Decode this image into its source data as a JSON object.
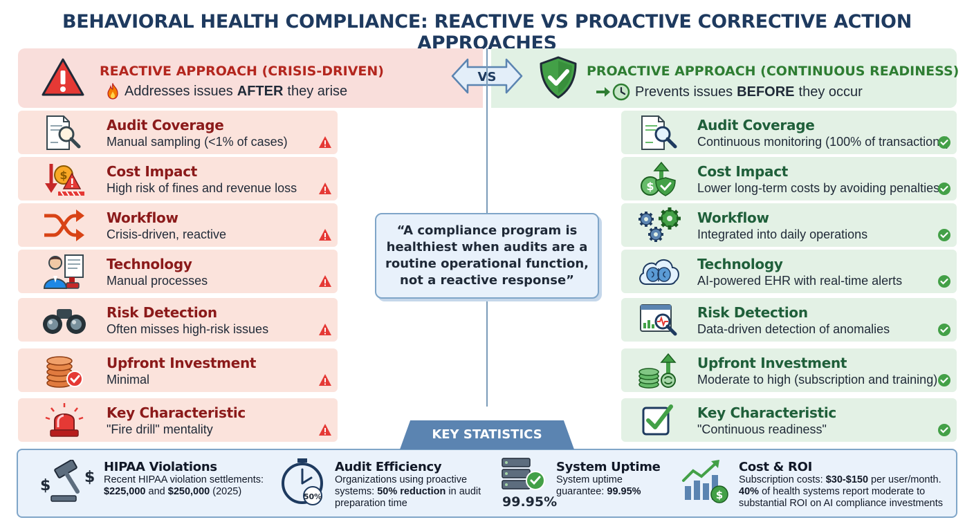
{
  "title": "BEHAVIORAL HEALTH COMPLIANCE: REACTIVE VS PROACTIVE CORRECTIVE ACTION APPROACHES",
  "vs_label": "VS",
  "reactive": {
    "title": "REACTIVE APPROACH (CRISIS-DRIVEN)",
    "subtitle_pre": "Addresses issues",
    "subtitle_bold": "AFTER",
    "subtitle_post": "they arise",
    "accent_color": "#b3261e",
    "cards": [
      {
        "label": "Audit Coverage",
        "desc": "Manual sampling (<1% of cases)",
        "icon": "document-search-icon"
      },
      {
        "label": "Cost Impact",
        "desc": "High risk of fines and revenue loss",
        "icon": "coin-warning-icon"
      },
      {
        "label": "Workflow",
        "desc": "Crisis-driven, reactive",
        "icon": "crossing-arrows-icon"
      },
      {
        "label": "Technology",
        "desc": "Manual processes",
        "icon": "person-paper-stamp-icon"
      },
      {
        "label": "Risk Detection",
        "desc": "Often misses high-risk issues",
        "icon": "binoculars-icon"
      },
      {
        "label": "Upfront Investment",
        "desc": "Minimal",
        "icon": "coin-stack-check-icon"
      },
      {
        "label": "Key Characteristic",
        "desc": "\"Fire drill\" mentality",
        "icon": "siren-icon"
      }
    ]
  },
  "proactive": {
    "title": "PROACTIVE APPROACH (CONTINUOUS READINESS)",
    "subtitle_pre": "Prevents issues",
    "subtitle_bold": "BEFORE",
    "subtitle_post": "they occur",
    "accent_color": "#2e7d32",
    "cards": [
      {
        "label": "Audit Coverage",
        "desc": "Continuous monitoring (100% of transactions)",
        "icon": "document-search-icon"
      },
      {
        "label": "Cost Impact",
        "desc": "Lower long-term costs by avoiding penalties",
        "icon": "dollar-shield-arrow-icon"
      },
      {
        "label": "Workflow",
        "desc": "Integrated into daily operations",
        "icon": "gears-icon"
      },
      {
        "label": "Technology",
        "desc": "AI-powered EHR with real-time alerts",
        "icon": "cloud-brain-icon"
      },
      {
        "label": "Risk Detection",
        "desc": "Data-driven detection of anomalies",
        "icon": "dashboard-magnifier-icon"
      },
      {
        "label": "Upfront Investment",
        "desc": "Moderate to high (subscription and training)",
        "icon": "coins-growth-icon"
      },
      {
        "label": "Key Characteristic",
        "desc": "\"Continuous readiness\"",
        "icon": "checkbox-icon"
      }
    ]
  },
  "quote": "“A compliance program is healthiest when audits are a routine operational function, not a reactive response”",
  "stats": {
    "tab_label": "KEY STATISTICS",
    "items": [
      {
        "title": "HIPAA Violations",
        "text_1": "Recent HIPAA violation settlements:",
        "bold_1": "$225,000",
        "text_2": "and",
        "bold_2": "$250,000",
        "text_3": "(2025)",
        "icon": "gavel-dollar-icon"
      },
      {
        "title": "Audit Efficiency",
        "text_1": "Organizations using proactive systems:",
        "bold_1": "50% reduction",
        "text_2": "in audit preparation time",
        "badge": "50%",
        "icon": "stopwatch-icon"
      },
      {
        "title": "System Uptime",
        "text_1": "System uptime guarantee:",
        "bold_1": "99.95%",
        "big_value": "99.95%",
        "icon": "server-check-icon"
      },
      {
        "title": "Cost & ROI",
        "text_1": "Subscription costs:",
        "bold_1": "$30-$150",
        "text_2": "per user/month.",
        "bold_2": "40%",
        "text_3": "of health systems report moderate to substantial ROI on AI compliance investments",
        "icon": "growth-chart-dollar-icon"
      }
    ]
  },
  "colors": {
    "title": "#1e3a5f",
    "reactive_bg": "#fbe3dc",
    "proactive_bg": "#e3f1e5",
    "stats_bg": "#eaf2fb",
    "stats_tab": "#5b84b1"
  }
}
